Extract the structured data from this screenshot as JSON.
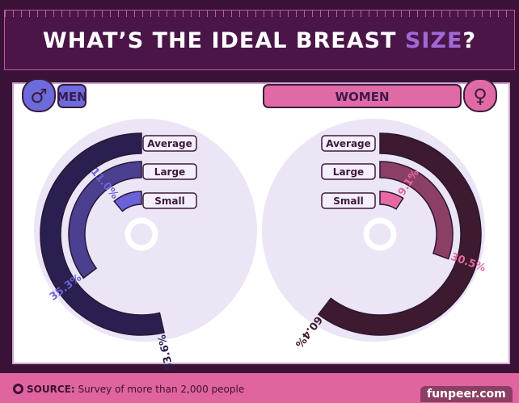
{
  "title": {
    "main": "WHAT’S THE IDEAL BREAST",
    "highlight": "SIZE",
    "end": "?"
  },
  "chart_data": [
    {
      "type": "radial-bar",
      "title": "MEN",
      "icon": "male-symbol-icon",
      "categories": [
        "Average",
        "Large",
        "Small"
      ],
      "values": [
        53.6,
        35.3,
        11.0
      ],
      "labels": [
        "53.6%",
        "35.3%",
        "11.0%"
      ],
      "colors": [
        "#2a1f4f",
        "#4b3f8f",
        "#6a63d8"
      ],
      "header_color": "#6b6bdc",
      "direction": "counterclockwise"
    },
    {
      "type": "radial-bar",
      "title": "WOMEN",
      "icon": "female-symbol-icon",
      "categories": [
        "Average",
        "Large",
        "Small"
      ],
      "values": [
        60.4,
        30.5,
        9.1
      ],
      "labels": [
        "60.4%",
        "30.5%",
        "9.1%"
      ],
      "colors": [
        "#3d1a2e",
        "#8c3f64",
        "#e46aa5"
      ],
      "header_color": "#e06aa6",
      "direction": "clockwise"
    }
  ],
  "footer": {
    "source_label": "SOURCE:",
    "source_text": "Survey of more than 2,000 people",
    "brand": "funpeer.com"
  }
}
